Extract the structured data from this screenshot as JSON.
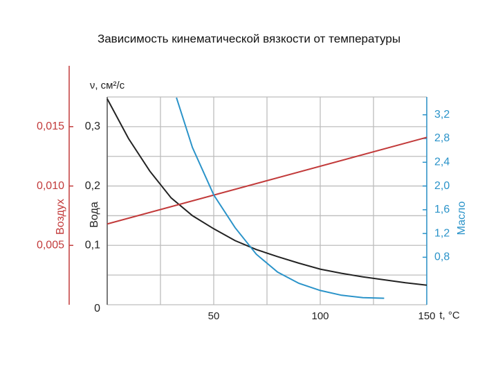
{
  "chart_data": {
    "type": "line",
    "title": "Зависимость кинематической вязкости от температуры",
    "ylabel": "ν, см²/с",
    "xlabel": "t, °C",
    "xlim": [
      0,
      150
    ],
    "xticks": [
      50,
      100,
      150
    ],
    "xgrid": [
      0,
      25,
      50,
      75,
      100,
      125,
      150
    ],
    "ylim": [
      0,
      0.35
    ],
    "yticks": [
      0,
      {
        "value": 0.1,
        "label": "0,1"
      },
      {
        "value": 0.2,
        "label": "0,2"
      },
      {
        "value": 0.3,
        "label": "0,3"
      }
    ],
    "ygrid": [
      0,
      0.05,
      0.1,
      0.15,
      0.2,
      0.25,
      0.3,
      0.35
    ],
    "y3lim": [
      0,
      0.0175
    ],
    "y3ticks": [
      {
        "value": 0.005,
        "label": "0,005"
      },
      {
        "value": 0.01,
        "label": "0,010"
      },
      {
        "value": 0.015,
        "label": "0,015"
      }
    ],
    "y2lim": [
      0,
      3.5
    ],
    "y2ticks": [
      {
        "value": 0.8,
        "label": "0,8"
      },
      {
        "value": 1.2,
        "label": "1,2"
      },
      {
        "value": 1.6,
        "label": "1,6"
      },
      {
        "value": 2.0,
        "label": "2,0"
      },
      {
        "value": 2.4,
        "label": "2,4"
      },
      {
        "value": 2.8,
        "label": "2,8"
      },
      {
        "value": 3.2,
        "label": "3,2"
      }
    ],
    "grid": true,
    "series": [
      {
        "name": "Вода",
        "color": "#222222",
        "axis": "y",
        "x": [
          0,
          10,
          20,
          30,
          40,
          50,
          60,
          70,
          80,
          90,
          100,
          110,
          120,
          130,
          140,
          150
        ],
        "values": [
          0.347,
          0.28,
          0.225,
          0.18,
          0.15,
          0.128,
          0.108,
          0.093,
          0.081,
          0.07,
          0.06,
          0.053,
          0.047,
          0.042,
          0.037,
          0.033
        ]
      },
      {
        "name": "Воздух",
        "color": "#c23a3a",
        "axis": "y3",
        "x": [
          0,
          150
        ],
        "values": [
          0.0068,
          0.0141
        ]
      },
      {
        "name": "Масло",
        "color": "#2a93c9",
        "axis": "y2",
        "x": [
          32.5,
          40,
          50,
          60,
          70,
          80,
          90,
          100,
          110,
          120,
          130
        ],
        "values": [
          3.49,
          2.65,
          1.85,
          1.3,
          0.85,
          0.55,
          0.36,
          0.24,
          0.16,
          0.12,
          0.11
        ]
      }
    ]
  }
}
